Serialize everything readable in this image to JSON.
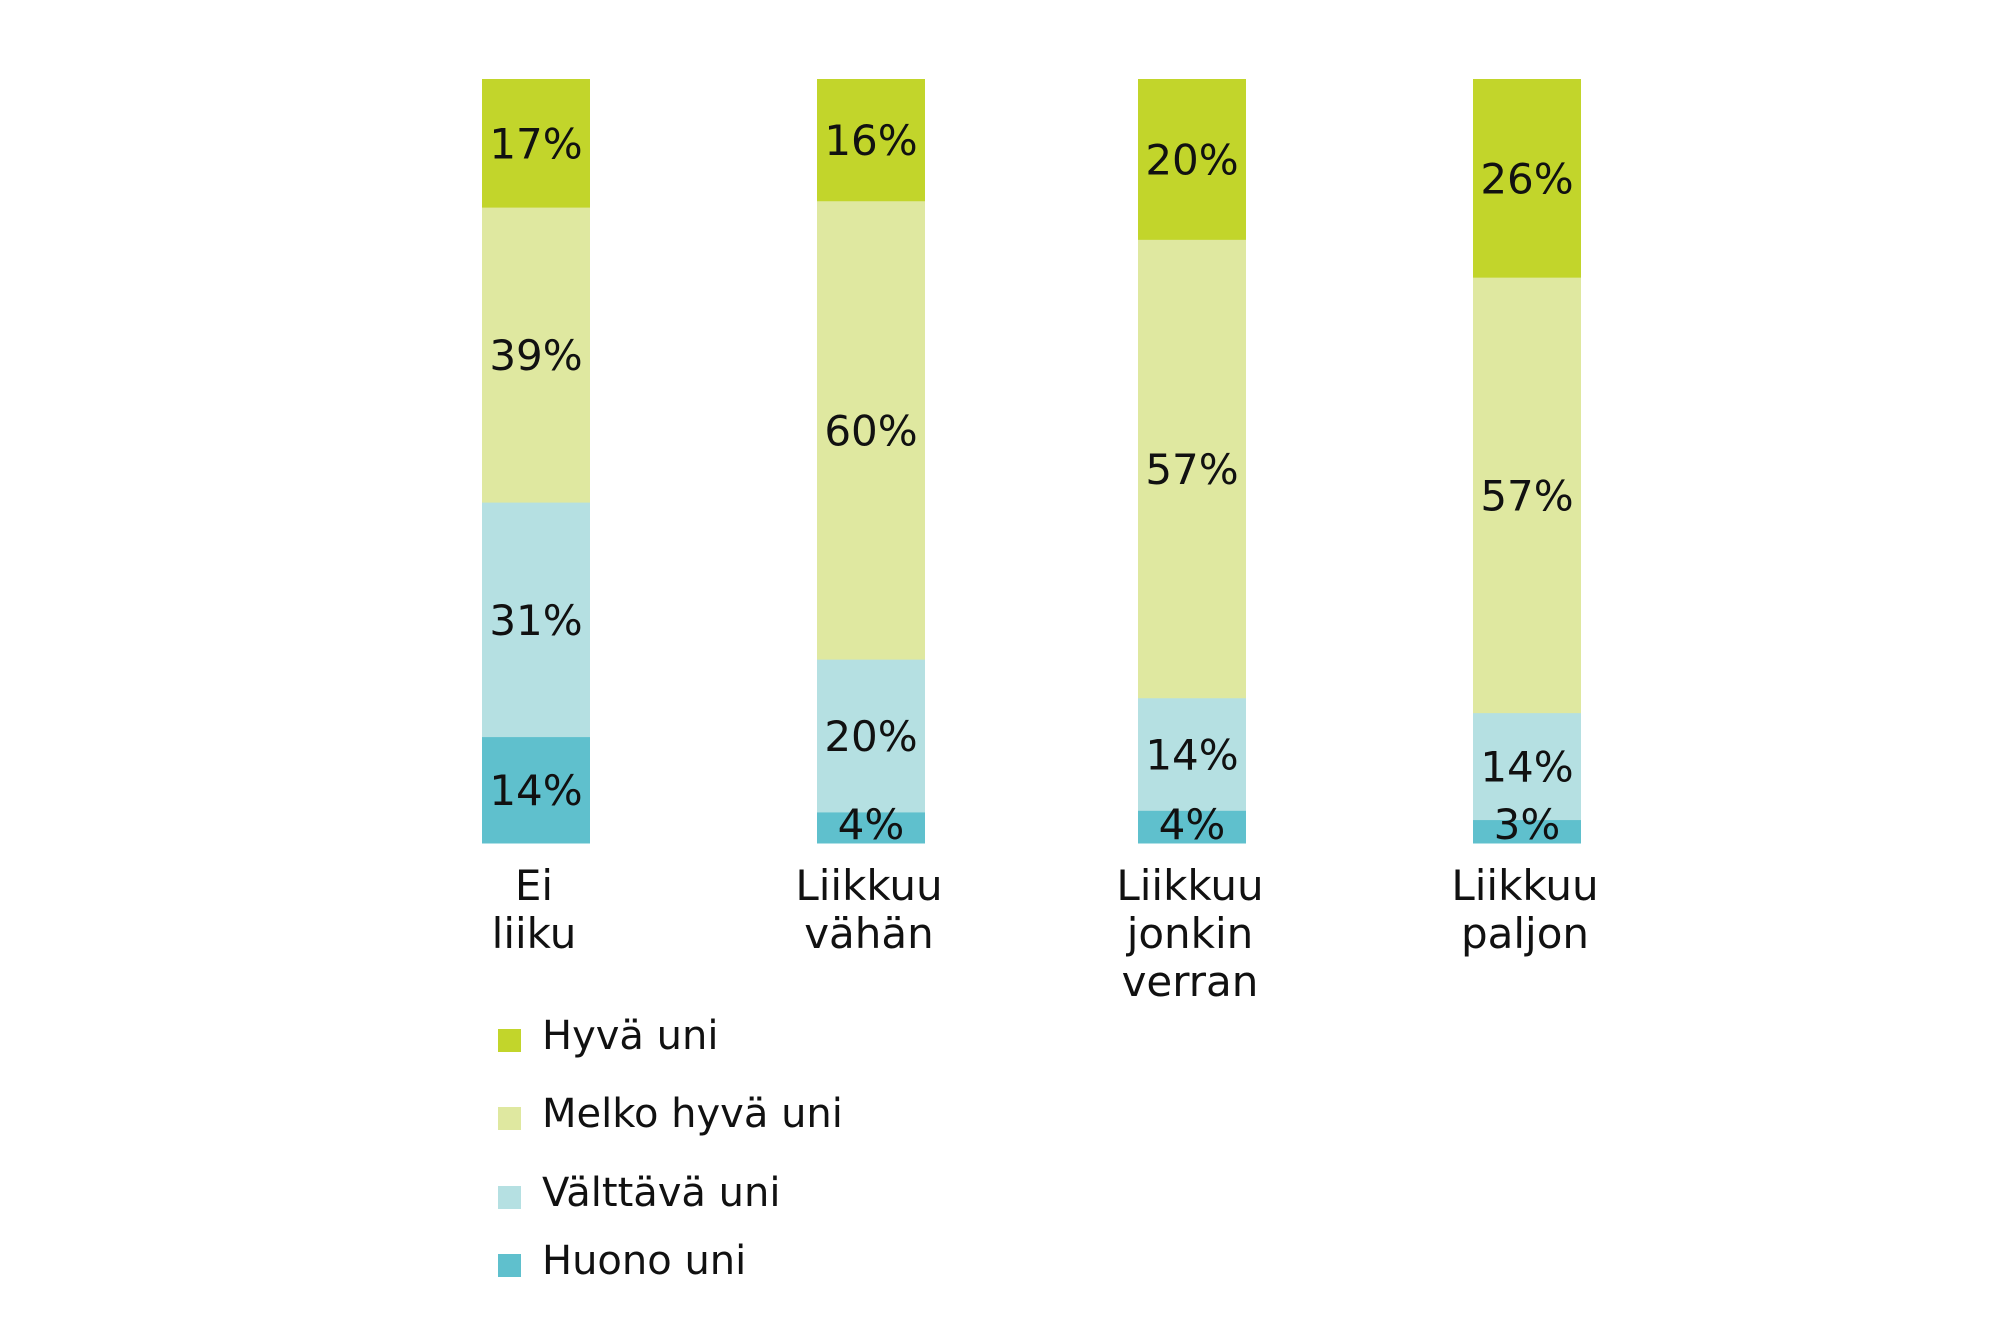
{
  "chart_data": {
    "type": "bar",
    "stacked": true,
    "categories": [
      [
        "Ei",
        "liiku"
      ],
      [
        "Liikkuu",
        "vähän"
      ],
      [
        "Liikkuu",
        "jonkin",
        "verran"
      ],
      [
        "Liikkuu",
        "paljon"
      ]
    ],
    "series": [
      {
        "name": "Hyvä uni",
        "color": "#c2d52b",
        "values": [
          17,
          16,
          20,
          26
        ]
      },
      {
        "name": "Melko hyvä uni",
        "color": "#dfe8a0",
        "values": [
          39,
          60,
          57,
          57
        ]
      },
      {
        "name": "Välttävä uni",
        "color": "#b5e0e2",
        "values": [
          31,
          20,
          14,
          14
        ]
      },
      {
        "name": "Huono uni",
        "color": "#5fc0cd",
        "values": [
          14,
          4,
          4,
          3
        ]
      }
    ],
    "value_suffix": "%",
    "legend_position": "bottom-left",
    "grid": false
  }
}
